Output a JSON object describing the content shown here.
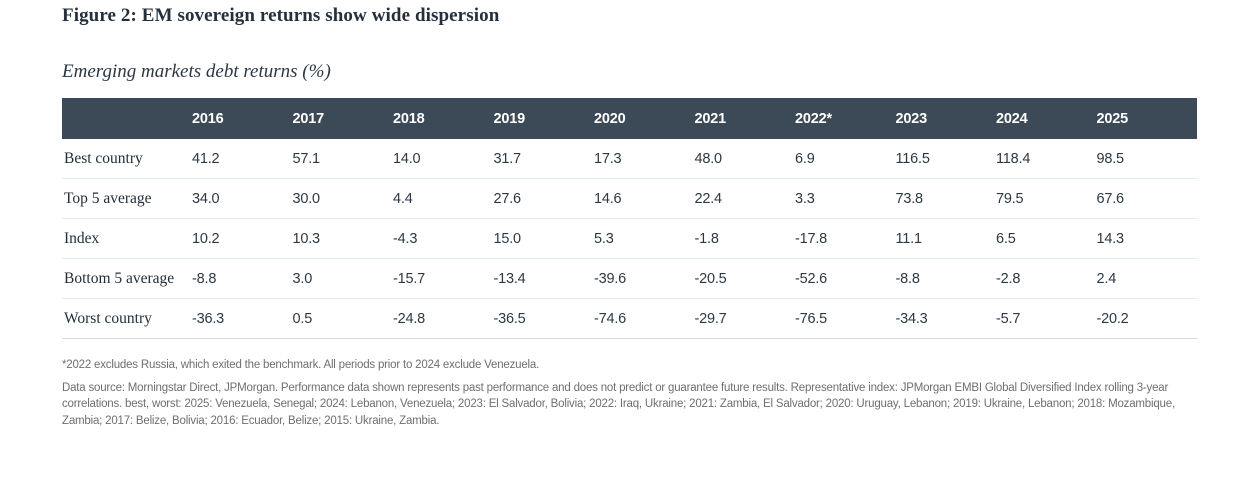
{
  "figure": {
    "title": "Figure 2: EM sovereign returns show wide dispersion",
    "subtitle": "Emerging markets debt returns (%)"
  },
  "table": {
    "columns": [
      "2016",
      "2017",
      "2018",
      "2019",
      "2020",
      "2021",
      "2022*",
      "2023",
      "2024",
      "2025"
    ],
    "rows": [
      {
        "label": "Best country",
        "values": [
          "41.2",
          "57.1",
          "14.0",
          "31.7",
          "17.3",
          "48.0",
          "6.9",
          "116.5",
          "118.4",
          "98.5"
        ]
      },
      {
        "label": "Top 5 average",
        "values": [
          "34.0",
          "30.0",
          "4.4",
          "27.6",
          "14.6",
          "22.4",
          "3.3",
          "73.8",
          "79.5",
          "67.6"
        ]
      },
      {
        "label": "Index",
        "values": [
          "10.2",
          "10.3",
          "-4.3",
          "15.0",
          "5.3",
          "-1.8",
          "-17.8",
          "11.1",
          "6.5",
          "14.3"
        ]
      },
      {
        "label": "Bottom 5 average",
        "values": [
          "-8.8",
          "3.0",
          "-15.7",
          "-13.4",
          "-39.6",
          "-20.5",
          "-52.6",
          "-8.8",
          "-2.8",
          "2.4"
        ]
      },
      {
        "label": "Worst country",
        "values": [
          "-36.3",
          "0.5",
          "-24.8",
          "-36.5",
          "-74.6",
          "-29.7",
          "-76.5",
          "-34.3",
          "-5.7",
          "-20.2"
        ]
      }
    ]
  },
  "footnotes": {
    "asterisk_note": "*2022 excludes Russia, which exited the benchmark. All periods prior to 2024 exclude Venezuela.",
    "data_source": "Data source: Morningstar Direct, JPMorgan. Performance data shown represents past performance and does not predict or guarantee future results. Representative index: JPMorgan EMBI Global Diversified Index rolling 3-year correlations. best, worst: 2025: Venezuela, Senegal; 2024: Lebanon, Venezuela; 2023: El Salvador, Bolivia; 2022: Iraq, Ukraine; 2021: Zambia, El Salvador; 2020: Uruguay, Lebanon; 2019: Ukraine, Lebanon; 2018: Mozambique, Zambia; 2017: Belize, Bolivia; 2016: Ecuador, Belize; 2015: Ukraine, Zambia."
  },
  "colors": {
    "header_bg": "#3c4a57",
    "header_text": "#ffffff",
    "title_text": "#24303c",
    "body_text": "#2c3844",
    "row_divider": "#daedf4",
    "table_bottom_border": "#d8d8d8",
    "footnote_text": "#6f6f6f"
  },
  "chart_data": {
    "type": "table",
    "title": "Figure 2: EM sovereign returns show wide dispersion",
    "subtitle": "Emerging markets debt returns (%)",
    "categories": [
      "2016",
      "2017",
      "2018",
      "2019",
      "2020",
      "2021",
      "2022*",
      "2023",
      "2024",
      "2025"
    ],
    "series": [
      {
        "name": "Best country",
        "values": [
          41.2,
          57.1,
          14.0,
          31.7,
          17.3,
          48.0,
          6.9,
          116.5,
          118.4,
          98.5
        ]
      },
      {
        "name": "Top 5 average",
        "values": [
          34.0,
          30.0,
          4.4,
          27.6,
          14.6,
          22.4,
          3.3,
          73.8,
          79.5,
          67.6
        ]
      },
      {
        "name": "Index",
        "values": [
          10.2,
          10.3,
          -4.3,
          15.0,
          5.3,
          -1.8,
          -17.8,
          11.1,
          6.5,
          14.3
        ]
      },
      {
        "name": "Bottom 5 average",
        "values": [
          -8.8,
          3.0,
          -15.7,
          -13.4,
          -39.6,
          -20.5,
          -52.6,
          -8.8,
          -2.8,
          2.4
        ]
      },
      {
        "name": "Worst country",
        "values": [
          -36.3,
          0.5,
          -24.8,
          -36.5,
          -74.6,
          -29.7,
          -76.5,
          -34.3,
          -5.7,
          -20.2
        ]
      }
    ],
    "notes": [
      "*2022 excludes Russia, which exited the benchmark. All periods prior to 2024 exclude Venezuela.",
      "Data source: Morningstar Direct, JPMorgan. Performance data shown represents past performance and does not predict or guarantee future results. Representative index: JPMorgan EMBI Global Diversified Index rolling 3-year correlations. best, worst: 2025: Venezuela, Senegal; 2024: Lebanon, Venezuela; 2023: El Salvador, Bolivia; 2022: Iraq, Ukraine; 2021: Zambia, El Salvador; 2020: Uruguay, Lebanon; 2019: Ukraine, Lebanon; 2018: Mozambique, Zambia; 2017: Belize, Bolivia; 2016: Ecuador, Belize; 2015: Ukraine, Zambia."
    ]
  }
}
